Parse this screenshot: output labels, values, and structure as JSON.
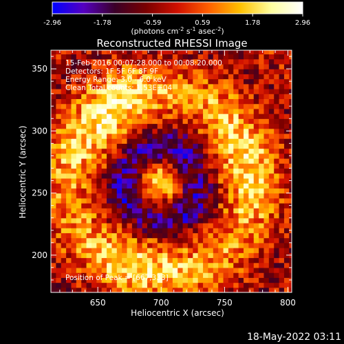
{
  "chart_data": {
    "type": "heatmap",
    "title": "Reconstructed RHESSI Image",
    "xlabel": "Heliocentric X (arcsec)",
    "ylabel": "Heliocentric Y (arcsec)",
    "xlim": [
      613,
      803
    ],
    "ylim": [
      170,
      365
    ],
    "x_ticks": [
      "650",
      "700",
      "750",
      "800"
    ],
    "y_ticks": [
      "200",
      "250",
      "300",
      "350"
    ],
    "colorbar": {
      "ticks": [
        "-2.96",
        "-1.78",
        "-0.59",
        "0.59",
        "1.78",
        "2.96"
      ],
      "range": [
        -2.96,
        2.96
      ],
      "unit_label": "(photons cm-2 s-1 asec-2)",
      "colormap": [
        "#0000ff",
        "#5500c0",
        "#3a0028",
        "#7a0000",
        "#d01000",
        "#ff6000",
        "#ffc000",
        "#ffffa0",
        "#ffffff"
      ]
    },
    "annotations": {
      "time": "15-Feb-2016 00:07:28.000 to 00:08:20.000",
      "detectors": "Detectors: 1F 5F 6F 8F 9F",
      "energy": "Energy Range: 3.0 - 6.0 keV",
      "clean": "Clean    Total counts: 1.53E+04",
      "peak": "Position of Peak = [667,333]"
    },
    "peak": [
      667,
      333
    ],
    "structure": {
      "center": [
        700,
        258
      ],
      "core_max": 2.2,
      "core_sigma_arcsec": 9,
      "ring_radius_arcsec": 30,
      "ring_value": -1.9,
      "outer_ring_radius_arcsec": 72,
      "outer_ring_value": 1.5,
      "noise_amplitude": 1.0
    }
  },
  "footer": {
    "timestamp": "18-May-2022 03:11"
  }
}
